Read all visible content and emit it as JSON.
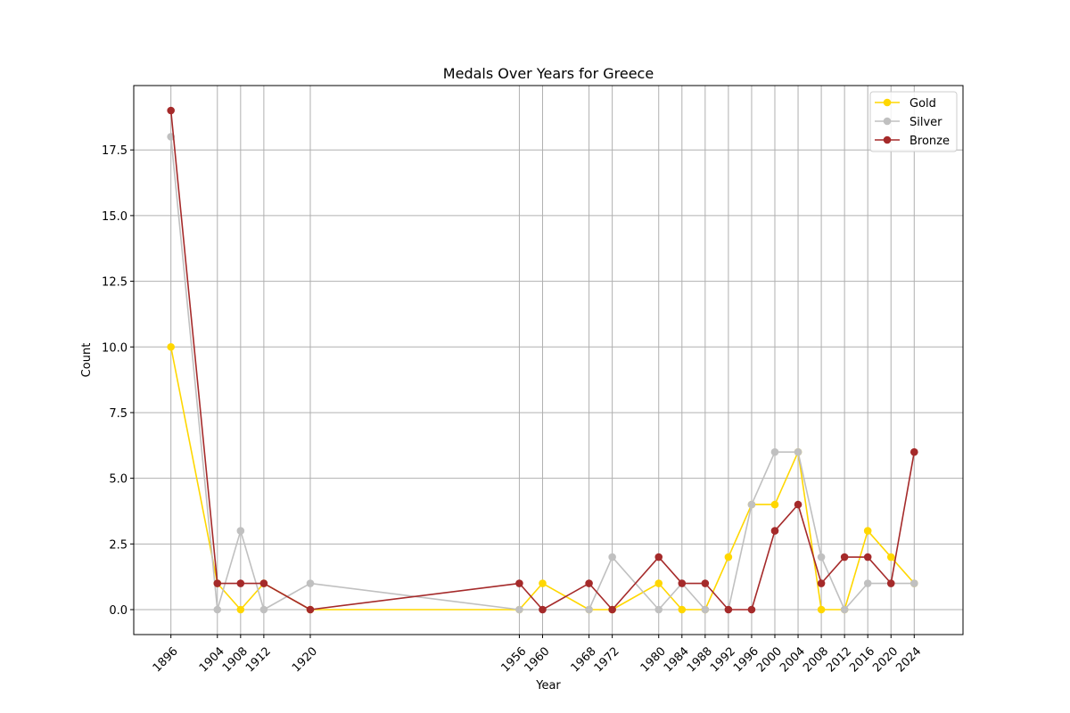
{
  "chart_data": {
    "type": "line",
    "title": "Medals Over Years for Greece",
    "xlabel": "Year",
    "ylabel": "Count",
    "x": [
      1896,
      1904,
      1908,
      1912,
      1920,
      1956,
      1960,
      1968,
      1972,
      1980,
      1984,
      1988,
      1992,
      1996,
      2000,
      2004,
      2008,
      2012,
      2016,
      2020,
      2024
    ],
    "xticks": [
      "1896",
      "1904",
      "1908",
      "1912",
      "1920",
      "1956",
      "1960",
      "1968",
      "1972",
      "1980",
      "1984",
      "1988",
      "1992",
      "1996",
      "2000",
      "2004",
      "2008",
      "2012",
      "2016",
      "2020",
      "2024"
    ],
    "yticks": [
      "0.0",
      "2.5",
      "5.0",
      "7.5",
      "10.0",
      "12.5",
      "15.0",
      "17.5"
    ],
    "ytick_values": [
      0,
      2.5,
      5,
      7.5,
      10,
      12.5,
      15,
      17.5
    ],
    "xlim": [
      1889.6,
      2032.4
    ],
    "ylim": [
      -0.95,
      19.95
    ],
    "grid": true,
    "legend_position": "top-right",
    "series": [
      {
        "name": "Gold",
        "color": "#FFD700",
        "values": [
          10,
          1,
          0,
          1,
          0,
          0,
          1,
          0,
          0,
          1,
          0,
          0,
          2,
          4,
          4,
          6,
          0,
          0,
          3,
          2,
          1
        ]
      },
      {
        "name": "Silver",
        "color": "#C0C0C0",
        "values": [
          18,
          0,
          3,
          0,
          1,
          0,
          0,
          0,
          2,
          0,
          1,
          0,
          0,
          4,
          6,
          6,
          2,
          0,
          1,
          1,
          1
        ]
      },
      {
        "name": "Bronze",
        "color": "#A52A2A",
        "values": [
          19,
          1,
          1,
          1,
          0,
          1,
          0,
          1,
          0,
          2,
          1,
          1,
          0,
          0,
          3,
          4,
          1,
          2,
          2,
          1,
          6
        ]
      }
    ]
  }
}
